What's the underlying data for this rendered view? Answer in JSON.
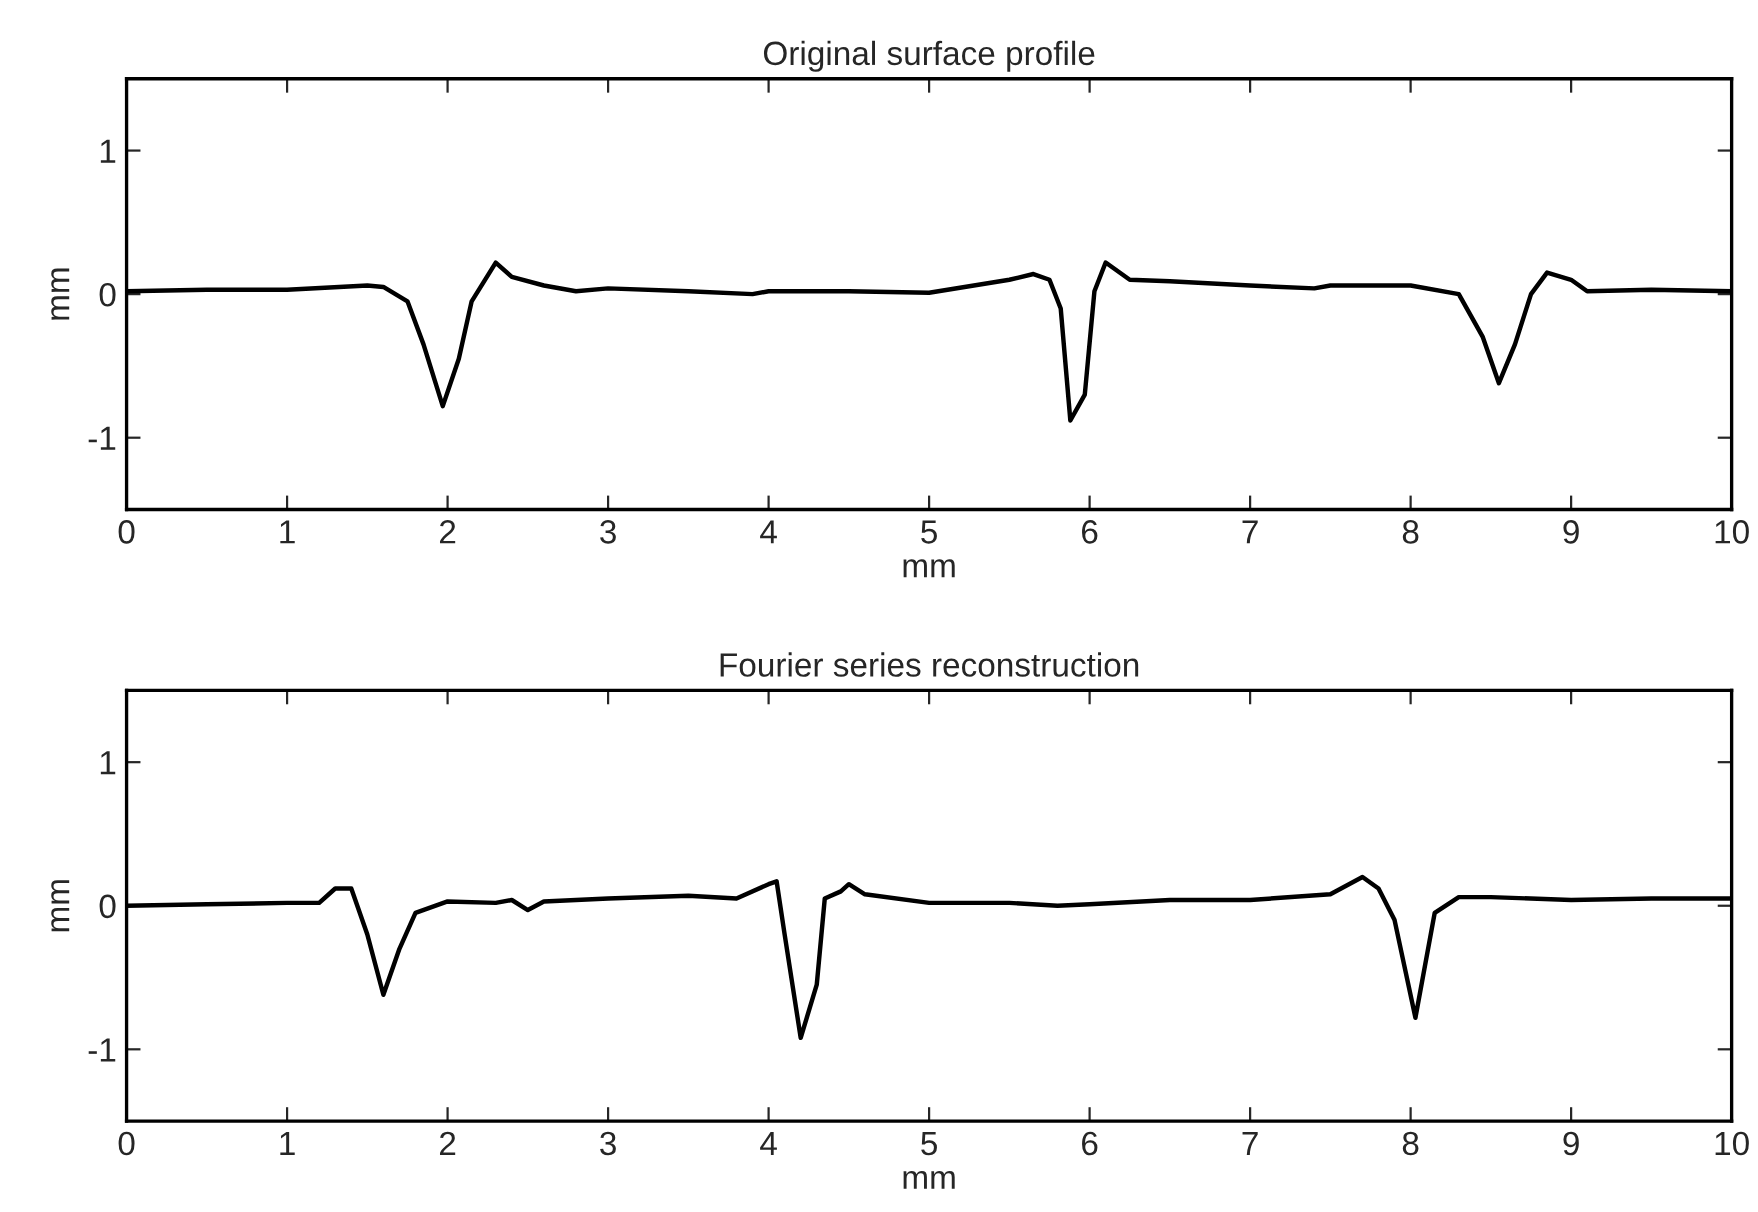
{
  "chart_data": [
    {
      "type": "line",
      "title": "Original surface profile",
      "xlabel": "mm",
      "ylabel": "mm",
      "xlim": [
        0,
        10
      ],
      "ylim": [
        -1.5,
        1.5
      ],
      "xticks": [
        0,
        1,
        2,
        3,
        4,
        5,
        6,
        7,
        8,
        9,
        10
      ],
      "yticks": [
        -1,
        0,
        1
      ],
      "grid": false,
      "series": [
        {
          "color": "#000000",
          "x": [
            0,
            0.5,
            1,
            1.5,
            1.6,
            1.75,
            1.85,
            1.97,
            2.07,
            2.15,
            2.3,
            2.4,
            2.6,
            2.8,
            3,
            3.5,
            3.9,
            4,
            4.5,
            5,
            5.5,
            5.65,
            5.75,
            5.82,
            5.88,
            5.97,
            6.03,
            6.1,
            6.25,
            6.5,
            7,
            7.4,
            7.5,
            8,
            8.3,
            8.45,
            8.55,
            8.65,
            8.75,
            8.85,
            9,
            9.1,
            9.5,
            10
          ],
          "values": [
            0.02,
            0.03,
            0.03,
            0.06,
            0.05,
            -0.05,
            -0.35,
            -0.78,
            -0.45,
            -0.05,
            0.22,
            0.12,
            0.06,
            0.02,
            0.04,
            0.02,
            0.0,
            0.02,
            0.02,
            0.01,
            0.1,
            0.14,
            0.1,
            -0.1,
            -0.88,
            -0.7,
            0.02,
            0.22,
            0.1,
            0.09,
            0.06,
            0.04,
            0.06,
            0.06,
            0.0,
            -0.3,
            -0.62,
            -0.35,
            0.0,
            0.15,
            0.1,
            0.02,
            0.03,
            0.02
          ]
        }
      ]
    },
    {
      "type": "line",
      "title": "Fourier series reconstruction",
      "xlabel": "mm",
      "ylabel": "mm",
      "xlim": [
        0,
        10
      ],
      "ylim": [
        -1.5,
        1.5
      ],
      "xticks": [
        0,
        1,
        2,
        3,
        4,
        5,
        6,
        7,
        8,
        9,
        10
      ],
      "yticks": [
        -1,
        0,
        1
      ],
      "grid": false,
      "series": [
        {
          "color": "#000000",
          "x": [
            0,
            0.5,
            1,
            1.2,
            1.3,
            1.4,
            1.5,
            1.6,
            1.7,
            1.8,
            2,
            2.3,
            2.4,
            2.5,
            2.6,
            3,
            3.5,
            3.8,
            4,
            4.05,
            4.1,
            4.2,
            4.3,
            4.35,
            4.45,
            4.5,
            4.6,
            5,
            5.5,
            5.8,
            6,
            6.5,
            7,
            7.5,
            7.7,
            7.8,
            7.9,
            8.03,
            8.15,
            8.3,
            8.5,
            9,
            9.5,
            10
          ],
          "values": [
            0.0,
            0.01,
            0.02,
            0.02,
            0.12,
            0.12,
            -0.2,
            -0.62,
            -0.3,
            -0.05,
            0.03,
            0.02,
            0.04,
            -0.03,
            0.03,
            0.05,
            0.07,
            0.05,
            0.15,
            0.17,
            -0.2,
            -0.92,
            -0.55,
            0.05,
            0.1,
            0.15,
            0.08,
            0.02,
            0.02,
            0.0,
            0.01,
            0.04,
            0.04,
            0.08,
            0.2,
            0.12,
            -0.1,
            -0.78,
            -0.05,
            0.06,
            0.06,
            0.04,
            0.05,
            0.05
          ]
        }
      ]
    }
  ]
}
